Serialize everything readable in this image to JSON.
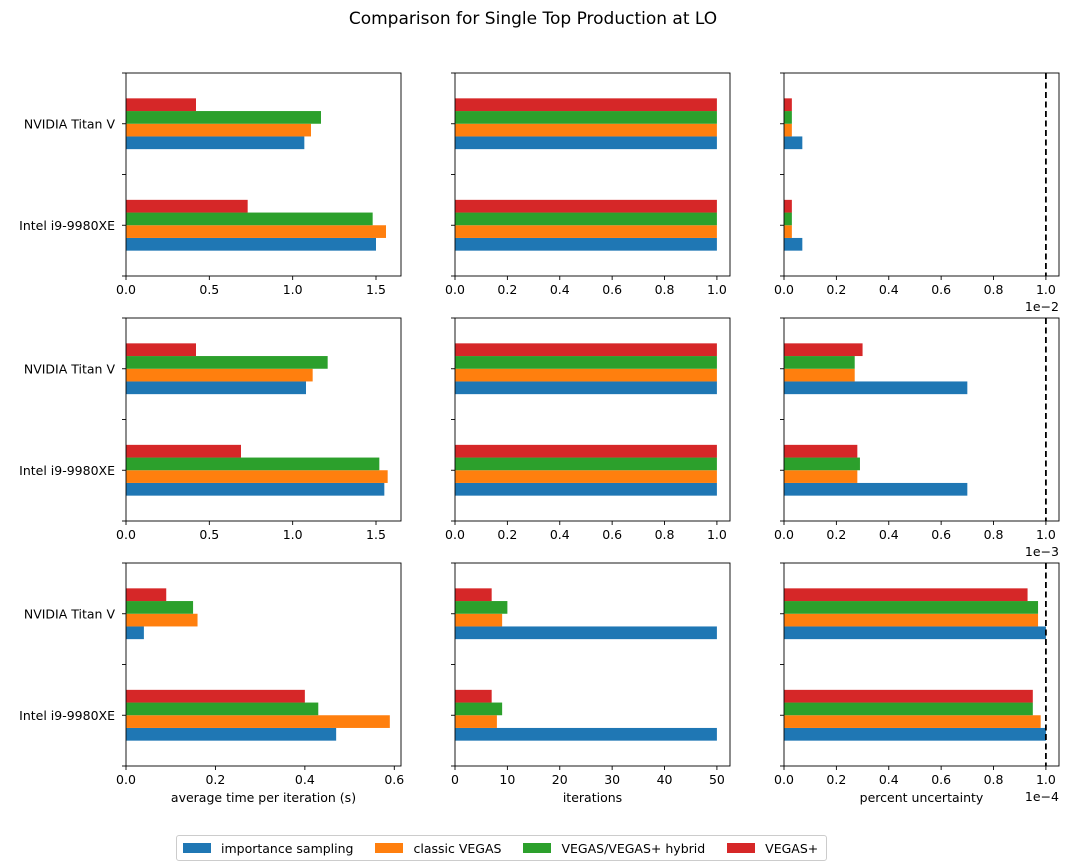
{
  "suptitle": "Comparison for Single Top Production at LO",
  "chart_data": {
    "type": "bar",
    "orientation": "horizontal",
    "categories": [
      "NVIDIA Titan V",
      "Intel i9-9980XE"
    ],
    "series_names": [
      "importance sampling",
      "classic VEGAS",
      "VEGAS/VEGAS+ hybrid",
      "VEGAS+"
    ],
    "colors": [
      "#1f77b4",
      "#ff7f0e",
      "#2ca02c",
      "#d62728"
    ],
    "reference_line": {
      "x": 1.0,
      "style": "dashed",
      "color": "#000000"
    },
    "panels": [
      {
        "row": 0,
        "col": 0,
        "xlabel": "",
        "xlim": [
          0,
          1.65
        ],
        "xticks": [
          0,
          0.5,
          1.0,
          1.5
        ],
        "xtick_labels": [
          "0.0",
          "0.5",
          "1.0",
          "1.5"
        ],
        "offset_label": "",
        "values": {
          "NVIDIA Titan V": [
            1.07,
            1.11,
            1.17,
            0.42
          ],
          "Intel i9-9980XE": [
            1.5,
            1.56,
            1.48,
            0.73
          ]
        }
      },
      {
        "row": 0,
        "col": 1,
        "xlabel": "",
        "xlim": [
          0,
          1.05
        ],
        "xticks": [
          0,
          0.2,
          0.4,
          0.6,
          0.8,
          1.0
        ],
        "xtick_labels": [
          "0.0",
          "0.2",
          "0.4",
          "0.6",
          "0.8",
          "1.0"
        ],
        "offset_label": "",
        "values": {
          "NVIDIA Titan V": [
            1,
            1,
            1,
            1
          ],
          "Intel i9-9980XE": [
            1,
            1,
            1,
            1
          ]
        }
      },
      {
        "row": 0,
        "col": 2,
        "xlabel": "",
        "xlim": [
          0,
          1.05
        ],
        "refline": true,
        "xticks": [
          0,
          0.2,
          0.4,
          0.6,
          0.8,
          1.0
        ],
        "xtick_labels": [
          "0.0",
          "0.2",
          "0.4",
          "0.6",
          "0.8",
          "1.0"
        ],
        "offset_label": "1e−2",
        "values": {
          "NVIDIA Titan V": [
            0.07,
            0.03,
            0.03,
            0.03
          ],
          "Intel i9-9980XE": [
            0.07,
            0.03,
            0.03,
            0.03
          ]
        }
      },
      {
        "row": 1,
        "col": 0,
        "xlabel": "",
        "xlim": [
          0,
          1.65
        ],
        "xticks": [
          0,
          0.5,
          1.0,
          1.5
        ],
        "xtick_labels": [
          "0.0",
          "0.5",
          "1.0",
          "1.5"
        ],
        "offset_label": "",
        "values": {
          "NVIDIA Titan V": [
            1.08,
            1.12,
            1.21,
            0.42
          ],
          "Intel i9-9980XE": [
            1.55,
            1.57,
            1.52,
            0.69
          ]
        }
      },
      {
        "row": 1,
        "col": 1,
        "xlabel": "",
        "xlim": [
          0,
          1.05
        ],
        "xticks": [
          0,
          0.2,
          0.4,
          0.6,
          0.8,
          1.0
        ],
        "xtick_labels": [
          "0.0",
          "0.2",
          "0.4",
          "0.6",
          "0.8",
          "1.0"
        ],
        "offset_label": "",
        "values": {
          "NVIDIA Titan V": [
            1,
            1,
            1,
            1
          ],
          "Intel i9-9980XE": [
            1,
            1,
            1,
            1
          ]
        }
      },
      {
        "row": 1,
        "col": 2,
        "xlabel": "",
        "xlim": [
          0,
          1.05
        ],
        "refline": true,
        "xticks": [
          0,
          0.2,
          0.4,
          0.6,
          0.8,
          1.0
        ],
        "xtick_labels": [
          "0.0",
          "0.2",
          "0.4",
          "0.6",
          "0.8",
          "1.0"
        ],
        "offset_label": "1e−3",
        "values": {
          "NVIDIA Titan V": [
            0.7,
            0.27,
            0.27,
            0.3
          ],
          "Intel i9-9980XE": [
            0.7,
            0.28,
            0.29,
            0.28
          ]
        }
      },
      {
        "row": 2,
        "col": 0,
        "xlabel": "average time per iteration (s)",
        "xlim": [
          0,
          0.615
        ],
        "xticks": [
          0,
          0.2,
          0.4,
          0.6
        ],
        "xtick_labels": [
          "0.0",
          "0.2",
          "0.4",
          "0.6"
        ],
        "offset_label": "",
        "values": {
          "NVIDIA Titan V": [
            0.04,
            0.16,
            0.15,
            0.09
          ],
          "Intel i9-9980XE": [
            0.47,
            0.59,
            0.43,
            0.4
          ]
        }
      },
      {
        "row": 2,
        "col": 1,
        "xlabel": "iterations",
        "xlim": [
          0,
          52.5
        ],
        "xticks": [
          0,
          10,
          20,
          30,
          40,
          50
        ],
        "xtick_labels": [
          "0",
          "10",
          "20",
          "30",
          "40",
          "50"
        ],
        "offset_label": "",
        "values": {
          "NVIDIA Titan V": [
            50,
            9,
            10,
            7
          ],
          "Intel i9-9980XE": [
            50,
            8,
            9,
            7
          ]
        }
      },
      {
        "row": 2,
        "col": 2,
        "xlabel": "percent uncertainty",
        "xlim": [
          0,
          1.05
        ],
        "refline": true,
        "xticks": [
          0,
          0.2,
          0.4,
          0.6,
          0.8,
          1.0
        ],
        "xtick_labels": [
          "0.0",
          "0.2",
          "0.4",
          "0.6",
          "0.8",
          "1.0"
        ],
        "offset_label": "1e−4",
        "values": {
          "NVIDIA Titan V": [
            1.0,
            0.97,
            0.97,
            0.93
          ],
          "Intel i9-9980XE": [
            1.0,
            0.98,
            0.95,
            0.95
          ]
        }
      }
    ]
  }
}
